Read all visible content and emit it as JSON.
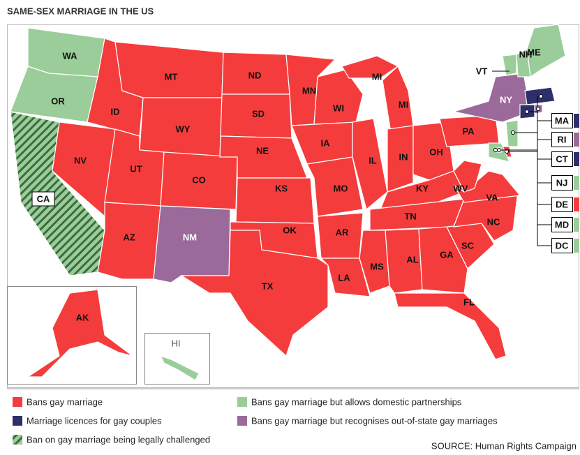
{
  "header": {
    "title": "SAME-SEX MARRIAGE IN THE US"
  },
  "states": [
    {
      "label": "WA",
      "color": "#9acd9a"
    },
    {
      "label": "OR",
      "color": "#9acd9a"
    },
    {
      "label": "CA",
      "color": "#9acd9a",
      "hatch": true
    },
    {
      "label": "NV",
      "color": "#f53c3c"
    },
    {
      "label": "ID",
      "color": "#f53c3c"
    },
    {
      "label": "MT",
      "color": "#f53c3c"
    },
    {
      "label": "WY",
      "color": "#f53c3c"
    },
    {
      "label": "UT",
      "color": "#f53c3c"
    },
    {
      "label": "CO",
      "color": "#f53c3c"
    },
    {
      "label": "AZ",
      "color": "#f53c3c"
    },
    {
      "label": "NM",
      "color": "#9a6a9a"
    },
    {
      "label": "ND",
      "color": "#f53c3c"
    },
    {
      "label": "SD",
      "color": "#f53c3c"
    },
    {
      "label": "NE",
      "color": "#f53c3c"
    },
    {
      "label": "KS",
      "color": "#f53c3c"
    },
    {
      "label": "OK",
      "color": "#f53c3c"
    },
    {
      "label": "TX",
      "color": "#f53c3c"
    },
    {
      "label": "MN",
      "color": "#f53c3c"
    },
    {
      "label": "IA",
      "color": "#f53c3c"
    },
    {
      "label": "MO",
      "color": "#f53c3c"
    },
    {
      "label": "AR",
      "color": "#f53c3c"
    },
    {
      "label": "LA",
      "color": "#f53c3c"
    },
    {
      "label": "WI",
      "color": "#f53c3c"
    },
    {
      "label": "IL",
      "color": "#f53c3c"
    },
    {
      "label": "MS",
      "color": "#f53c3c"
    },
    {
      "label": "MI",
      "color": "#f53c3c"
    },
    {
      "label": "MI",
      "color": "#f53c3c"
    },
    {
      "label": "IN",
      "color": "#f53c3c"
    },
    {
      "label": "OH",
      "color": "#f53c3c"
    },
    {
      "label": "KY",
      "color": "#f53c3c"
    },
    {
      "label": "TN",
      "color": "#f53c3c"
    },
    {
      "label": "AL",
      "color": "#f53c3c"
    },
    {
      "label": "GA",
      "color": "#f53c3c"
    },
    {
      "label": "FL",
      "color": "#f53c3c"
    },
    {
      "label": "SC",
      "color": "#f53c3c"
    },
    {
      "label": "NC",
      "color": "#f53c3c"
    },
    {
      "label": "VA",
      "color": "#f53c3c"
    },
    {
      "label": "WV",
      "color": "#f53c3c"
    },
    {
      "label": "PA",
      "color": "#f53c3c"
    },
    {
      "label": "NY",
      "color": "#9a6a9a"
    },
    {
      "label": "VT",
      "color": "#9acd9a"
    },
    {
      "label": "NH",
      "color": "#9acd9a"
    },
    {
      "label": "ME",
      "color": "#9acd9a"
    },
    {
      "label": "MA",
      "color": "#2e2e6b"
    },
    {
      "label": "RI",
      "color": "#9a6a9a"
    },
    {
      "label": "CT",
      "color": "#2e2e6b"
    },
    {
      "label": "NJ",
      "color": "#9acd9a"
    },
    {
      "label": "DE",
      "color": "#f53c3c"
    },
    {
      "label": "MD",
      "color": "#9acd9a"
    },
    {
      "label": "DC",
      "color": "#9acd9a"
    },
    {
      "label": "AK",
      "color": "#f53c3c"
    },
    {
      "label": "HI",
      "color": "#9acd9a"
    }
  ],
  "legend": [
    {
      "label": "Bans gay marriage",
      "color": "#f53c3c"
    },
    {
      "label": "Bans gay marriage but allows domestic partnerships",
      "color": "#9acd9a"
    },
    {
      "label": "Marriage licences for gay couples",
      "color": "#2e2e6b"
    },
    {
      "label": "Bans gay marriage but recognises out-of-state gay marriages",
      "color": "#9a6a9a"
    },
    {
      "label": "Ban on gay marriage being legally challenged",
      "color": "#9acd9a",
      "hatch": true
    }
  ],
  "footer": {
    "source": "SOURCE: Human Rights Campaign"
  }
}
